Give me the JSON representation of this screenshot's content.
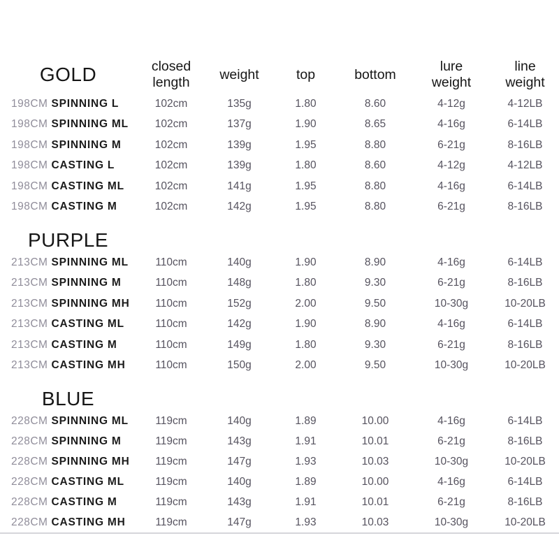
{
  "colors": {
    "background": "#ffffff",
    "header_text": "#161616",
    "model_text": "#1b1b1b",
    "model_prefix": "#908d9a",
    "value_text": "#56535f",
    "divider": "#d6d6da"
  },
  "table": {
    "headers": [
      "closed length",
      "weight",
      "top",
      "bottom",
      "lure weight",
      "line weight"
    ],
    "sections": [
      {
        "title": "GOLD",
        "rows": [
          {
            "size": "198CM",
            "type": "SPINNING L",
            "values": [
              "102cm",
              "135g",
              "1.80",
              "8.60",
              "4-12g",
              "4-12LB"
            ]
          },
          {
            "size": "198CM",
            "type": "SPINNING ML",
            "values": [
              "102cm",
              "137g",
              "1.90",
              "8.65",
              "4-16g",
              "6-14LB"
            ]
          },
          {
            "size": "198CM",
            "type": "SPINNING M",
            "values": [
              "102cm",
              "139g",
              "1.95",
              "8.80",
              "6-21g",
              "8-16LB"
            ]
          },
          {
            "size": "198CM",
            "type": "CASTING L",
            "values": [
              "102cm",
              "139g",
              "1.80",
              "8.60",
              "4-12g",
              "4-12LB"
            ]
          },
          {
            "size": "198CM",
            "type": "CASTING ML",
            "values": [
              "102cm",
              "141g",
              "1.95",
              "8.80",
              "4-16g",
              "6-14LB"
            ]
          },
          {
            "size": "198CM",
            "type": "CASTING M",
            "values": [
              "102cm",
              "142g",
              "1.95",
              "8.80",
              "6-21g",
              "8-16LB"
            ]
          }
        ]
      },
      {
        "title": "PURPLE",
        "rows": [
          {
            "size": "213CM",
            "type": "SPINNING ML",
            "values": [
              "110cm",
              "140g",
              "1.90",
              "8.90",
              "4-16g",
              "6-14LB"
            ]
          },
          {
            "size": "213CM",
            "type": "SPINNING M",
            "values": [
              "110cm",
              "148g",
              "1.80",
              "9.30",
              "6-21g",
              "8-16LB"
            ]
          },
          {
            "size": "213CM",
            "type": "SPINNING MH",
            "values": [
              "110cm",
              "152g",
              "2.00",
              "9.50",
              "10-30g",
              "10-20LB"
            ]
          },
          {
            "size": "213CM",
            "type": "CASTING ML",
            "values": [
              "110cm",
              "142g",
              "1.90",
              "8.90",
              "4-16g",
              "6-14LB"
            ]
          },
          {
            "size": "213CM",
            "type": "CASTING M",
            "values": [
              "110cm",
              "149g",
              "1.80",
              "9.30",
              "6-21g",
              "8-16LB"
            ]
          },
          {
            "size": "213CM",
            "type": "CASTING MH",
            "values": [
              "110cm",
              "150g",
              "2.00",
              "9.50",
              "10-30g",
              "10-20LB"
            ]
          }
        ]
      },
      {
        "title": "BLUE",
        "rows": [
          {
            "size": "228CM",
            "type": "SPINNING ML",
            "values": [
              "119cm",
              "140g",
              "1.89",
              "10.00",
              "4-16g",
              "6-14LB"
            ]
          },
          {
            "size": "228CM",
            "type": "SPINNING M",
            "values": [
              "119cm",
              "143g",
              "1.91",
              "10.01",
              "6-21g",
              "8-16LB"
            ]
          },
          {
            "size": "228CM",
            "type": "SPINNING MH",
            "values": [
              "119cm",
              "147g",
              "1.93",
              "10.03",
              "10-30g",
              "10-20LB"
            ]
          },
          {
            "size": "228CM",
            "type": "CASTING ML",
            "values": [
              "119cm",
              "140g",
              "1.89",
              "10.00",
              "4-16g",
              "6-14LB"
            ]
          },
          {
            "size": "228CM",
            "type": "CASTING M",
            "values": [
              "119cm",
              "143g",
              "1.91",
              "10.01",
              "6-21g",
              "8-16LB"
            ]
          },
          {
            "size": "228CM",
            "type": "CASTING MH",
            "values": [
              "119cm",
              "147g",
              "1.93",
              "10.03",
              "10-30g",
              "10-20LB"
            ]
          }
        ]
      }
    ]
  }
}
